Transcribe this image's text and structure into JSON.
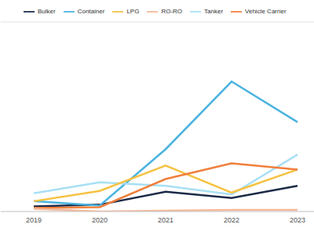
{
  "chart_data": {
    "type": "line",
    "x": [
      2019,
      2020,
      2021,
      2022,
      2023
    ],
    "xlim": [
      2018.5,
      2023.25
    ],
    "xticks": [
      2019,
      2020,
      2021,
      2022,
      2023
    ],
    "ylim": [
      0,
      7
    ],
    "yticks": [
      0,
      1,
      2,
      3,
      4,
      5,
      6,
      7
    ],
    "grid": true,
    "legend": "top-left",
    "tick_labels": "x",
    "series": [
      {
        "name": "Bulker",
        "color": "#1b2a47",
        "values": [
          0.19,
          0.25,
          0.73,
          0.5,
          0.95
        ]
      },
      {
        "name": "Container",
        "color": "#4ab3e0",
        "values": [
          0.38,
          0.22,
          2.3,
          4.8,
          3.3
        ]
      },
      {
        "name": "Tanker",
        "color": "#a8dff5",
        "values": [
          0.67,
          1.08,
          0.95,
          0.63,
          2.1
        ]
      },
      {
        "name": "LPG",
        "color": "#f5c242",
        "values": [
          0.38,
          0.76,
          1.7,
          0.7,
          1.55
        ]
      },
      {
        "name": "Vehicle Carrier",
        "color": "#f07f3c",
        "values": [
          0.13,
          0.16,
          1.2,
          1.78,
          1.55
        ]
      },
      {
        "name": "RO-RO",
        "color": "#f7b899",
        "values": [
          0.1,
          0,
          0.03,
          0.06,
          0.06
        ]
      }
    ]
  }
}
